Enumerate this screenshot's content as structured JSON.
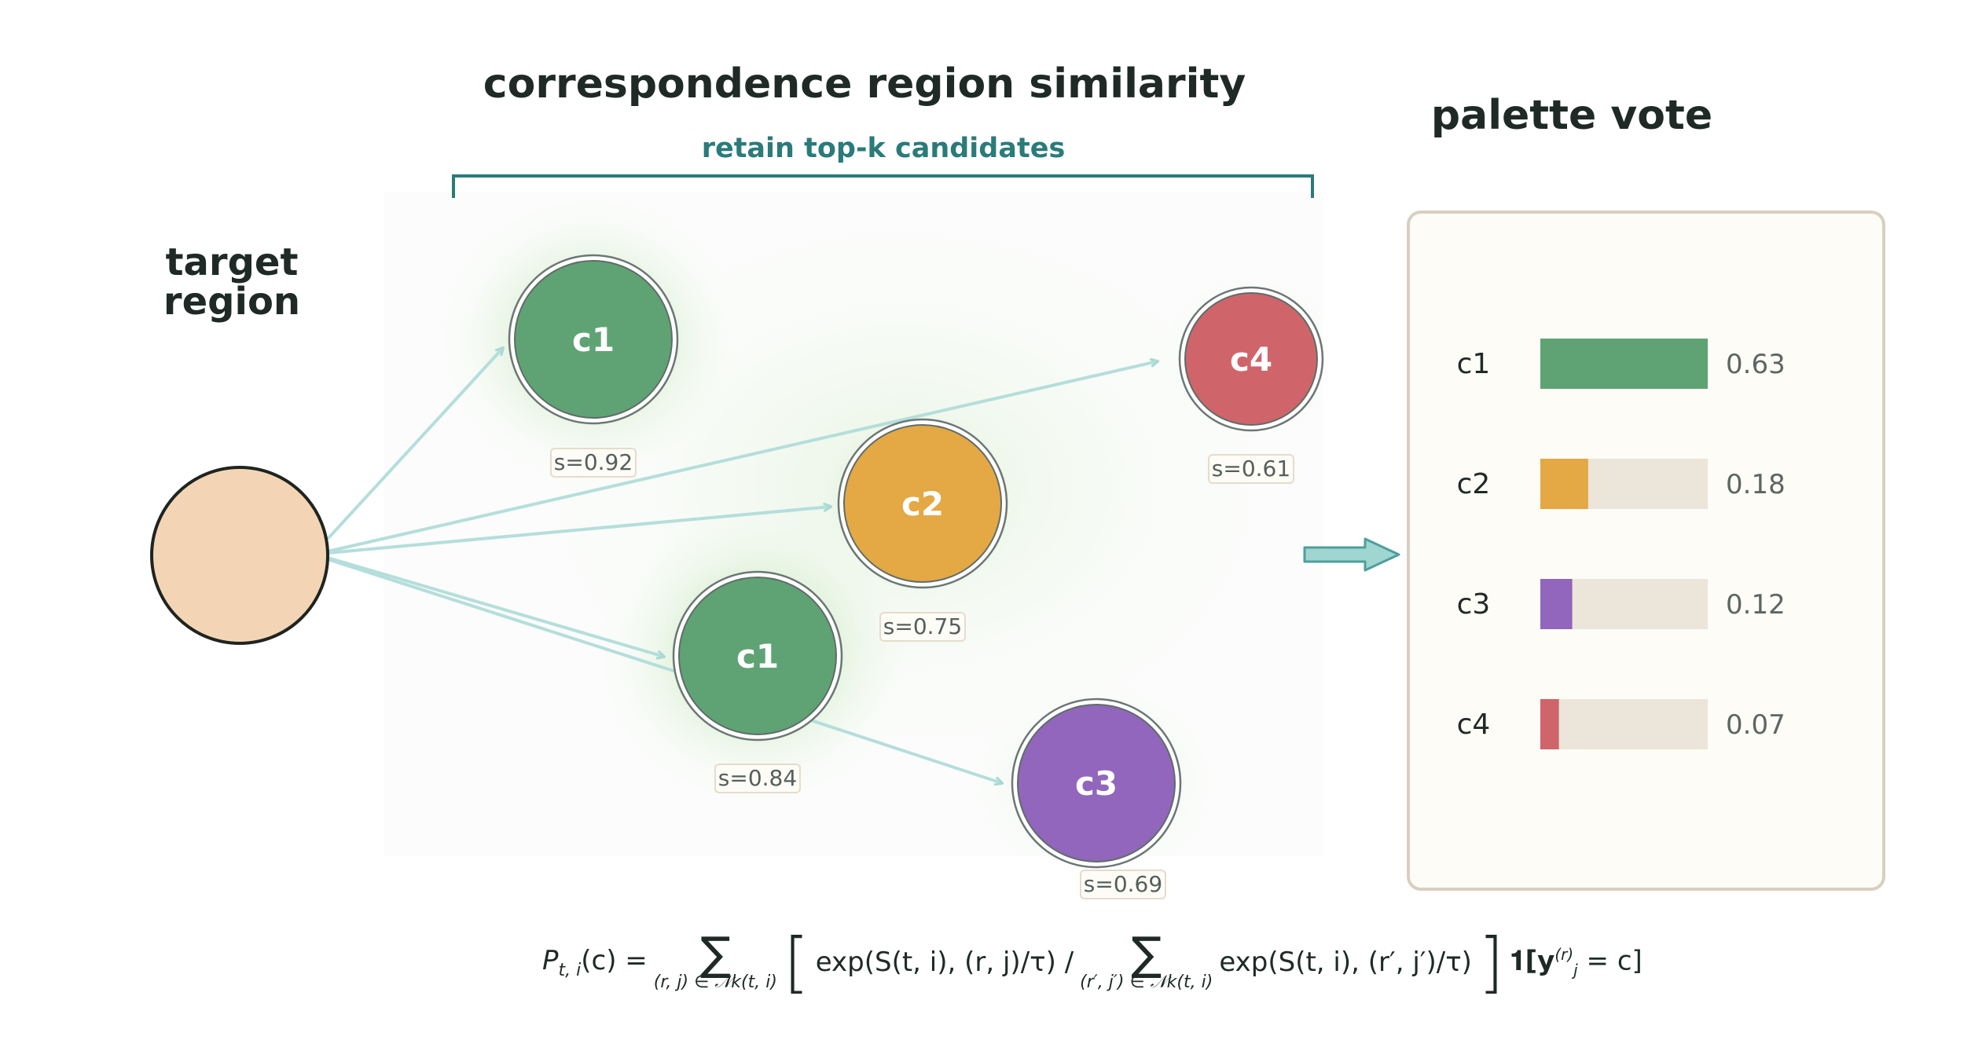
{
  "titles": {
    "main": "correspondence region similarity",
    "subtitle": "retain top-k candidates",
    "vote": "palette vote",
    "target_line1": "target",
    "target_line2": "region"
  },
  "colors": {
    "target_fill": "#f3d5b5",
    "green": "#5fa374",
    "orange": "#e4a844",
    "purple": "#9166bc",
    "red": "#cf656a",
    "teal_arrow": "#9fd6d2",
    "teal_edge": "#b4dedb",
    "bracket": "#2a7b7a",
    "panel_bg": "#fdfcf7",
    "panel_border": "#d9cfbf",
    "bar_track": "#ece5d9"
  },
  "candidates": [
    {
      "label": "c1",
      "score": "s=0.92",
      "color": "#5fa374"
    },
    {
      "label": "c4",
      "score": "s=0.61",
      "color": "#cf656a"
    },
    {
      "label": "c2",
      "score": "s=0.75",
      "color": "#e4a844"
    },
    {
      "label": "c1",
      "score": "s=0.84",
      "color": "#5fa374"
    },
    {
      "label": "c3",
      "score": "s=0.69",
      "color": "#9166bc"
    }
  ],
  "votes": [
    {
      "label": "c1",
      "value": 0.63,
      "value_text": "0.63",
      "color": "#5fa374"
    },
    {
      "label": "c2",
      "value": 0.18,
      "value_text": "0.18",
      "color": "#e4a844"
    },
    {
      "label": "c3",
      "value": 0.12,
      "value_text": "0.12",
      "color": "#9166bc"
    },
    {
      "label": "c4",
      "value": 0.07,
      "value_text": "0.07",
      "color": "#cf656a"
    }
  ],
  "formula": {
    "lhs": "P",
    "lhs_sub": "t, i",
    "lhs_arg": "(c) =",
    "sum1_sub": "(r, j) ∈ 𝒩k(t, i)",
    "frac_num": "exp(S(t, i), (r, j)/τ) /",
    "sum2_sub": "(r′, j′) ∈ 𝒩k(t, i)",
    "frac_den": "exp(S(t, i), (r′, j′)/τ)",
    "indicator": "𝟏[y",
    "indicator_sup": "(r)",
    "indicator_sub": "j",
    "indicator_tail": " = c]"
  }
}
